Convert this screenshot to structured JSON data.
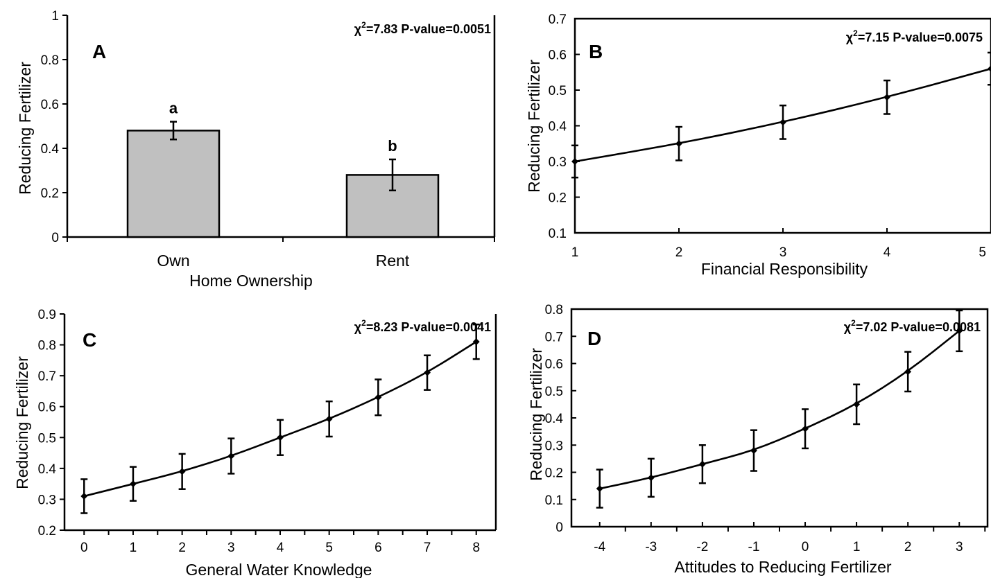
{
  "chart_data": [
    {
      "panel": "A",
      "type": "bar",
      "xlabel": "Home Ownership",
      "ylabel": "Reducing Fertilizer",
      "ylim": [
        0,
        1
      ],
      "yticks": [
        "0",
        "0.2",
        "0.4",
        "0.6",
        "0.8",
        "1"
      ],
      "categories": [
        "Own",
        "Rent"
      ],
      "values": [
        0.48,
        0.28
      ],
      "errors": [
        0.04,
        0.07
      ],
      "labels": [
        "a",
        "b"
      ],
      "annotation": {
        "chi": "χ",
        "sup": "2",
        "rest": "=7.83 P-value=0.0051"
      },
      "bar_color": "#c0c0c0"
    },
    {
      "panel": "B",
      "type": "line",
      "xlabel": "Financial Responsibility",
      "ylabel": "Reducing Fertilizer",
      "xlim": [
        1,
        5
      ],
      "ylim": [
        0.1,
        0.7
      ],
      "xticks": [
        "1",
        "2",
        "3",
        "4",
        "5"
      ],
      "yticks": [
        "0.1",
        "0.2",
        "0.3",
        "0.4",
        "0.5",
        "0.6",
        "0.7"
      ],
      "x": [
        1,
        2,
        3,
        4,
        5
      ],
      "y": [
        0.3,
        0.35,
        0.41,
        0.48,
        0.56
      ],
      "errors": [
        0.045,
        0.047,
        0.047,
        0.047,
        0.045
      ],
      "annotation": {
        "chi": "χ",
        "sup": "2",
        "rest": "=7.15 P-value=0.0075"
      }
    },
    {
      "panel": "C",
      "type": "line",
      "xlabel": "General Water Knowledge",
      "ylabel": "Reducing Fertilizer",
      "xlim": [
        -0.4,
        8.4
      ],
      "ylim": [
        0.2,
        0.9
      ],
      "xticks": [
        "0",
        "1",
        "2",
        "3",
        "4",
        "5",
        "6",
        "7",
        "8"
      ],
      "yticks": [
        "0.2",
        "0.3",
        "0.4",
        "0.5",
        "0.6",
        "0.7",
        "0.8",
        "0.9"
      ],
      "x": [
        0,
        1,
        2,
        3,
        4,
        5,
        6,
        7,
        8
      ],
      "y": [
        0.31,
        0.35,
        0.39,
        0.44,
        0.5,
        0.56,
        0.63,
        0.71,
        0.81
      ],
      "errors": [
        0.055,
        0.055,
        0.057,
        0.057,
        0.057,
        0.057,
        0.058,
        0.056,
        0.056
      ],
      "annotation": {
        "chi": "χ",
        "sup": "2",
        "rest": "=8.23 P-value=0.0041"
      }
    },
    {
      "panel": "D",
      "type": "line",
      "xlabel": "Attitudes to Reducing Fertilizer",
      "ylabel": "Reducing Fertilizer",
      "xlim": [
        -4.55,
        3.55
      ],
      "ylim": [
        0,
        0.8
      ],
      "xticks": [
        "-4",
        "-3",
        "-2",
        "-1",
        "0",
        "1",
        "2",
        "3"
      ],
      "yticks": [
        "0",
        "0.1",
        "0.2",
        "0.3",
        "0.4",
        "0.5",
        "0.6",
        "0.7",
        "0.8"
      ],
      "x": [
        -4,
        -3,
        -2,
        -1,
        0,
        1,
        2,
        3
      ],
      "y": [
        0.14,
        0.18,
        0.23,
        0.28,
        0.36,
        0.45,
        0.57,
        0.72
      ],
      "errors": [
        0.07,
        0.07,
        0.07,
        0.075,
        0.072,
        0.073,
        0.073,
        0.075
      ],
      "annotation": {
        "chi": "χ",
        "sup": "2",
        "rest": "=7.02 P-value=0.0081"
      }
    }
  ]
}
